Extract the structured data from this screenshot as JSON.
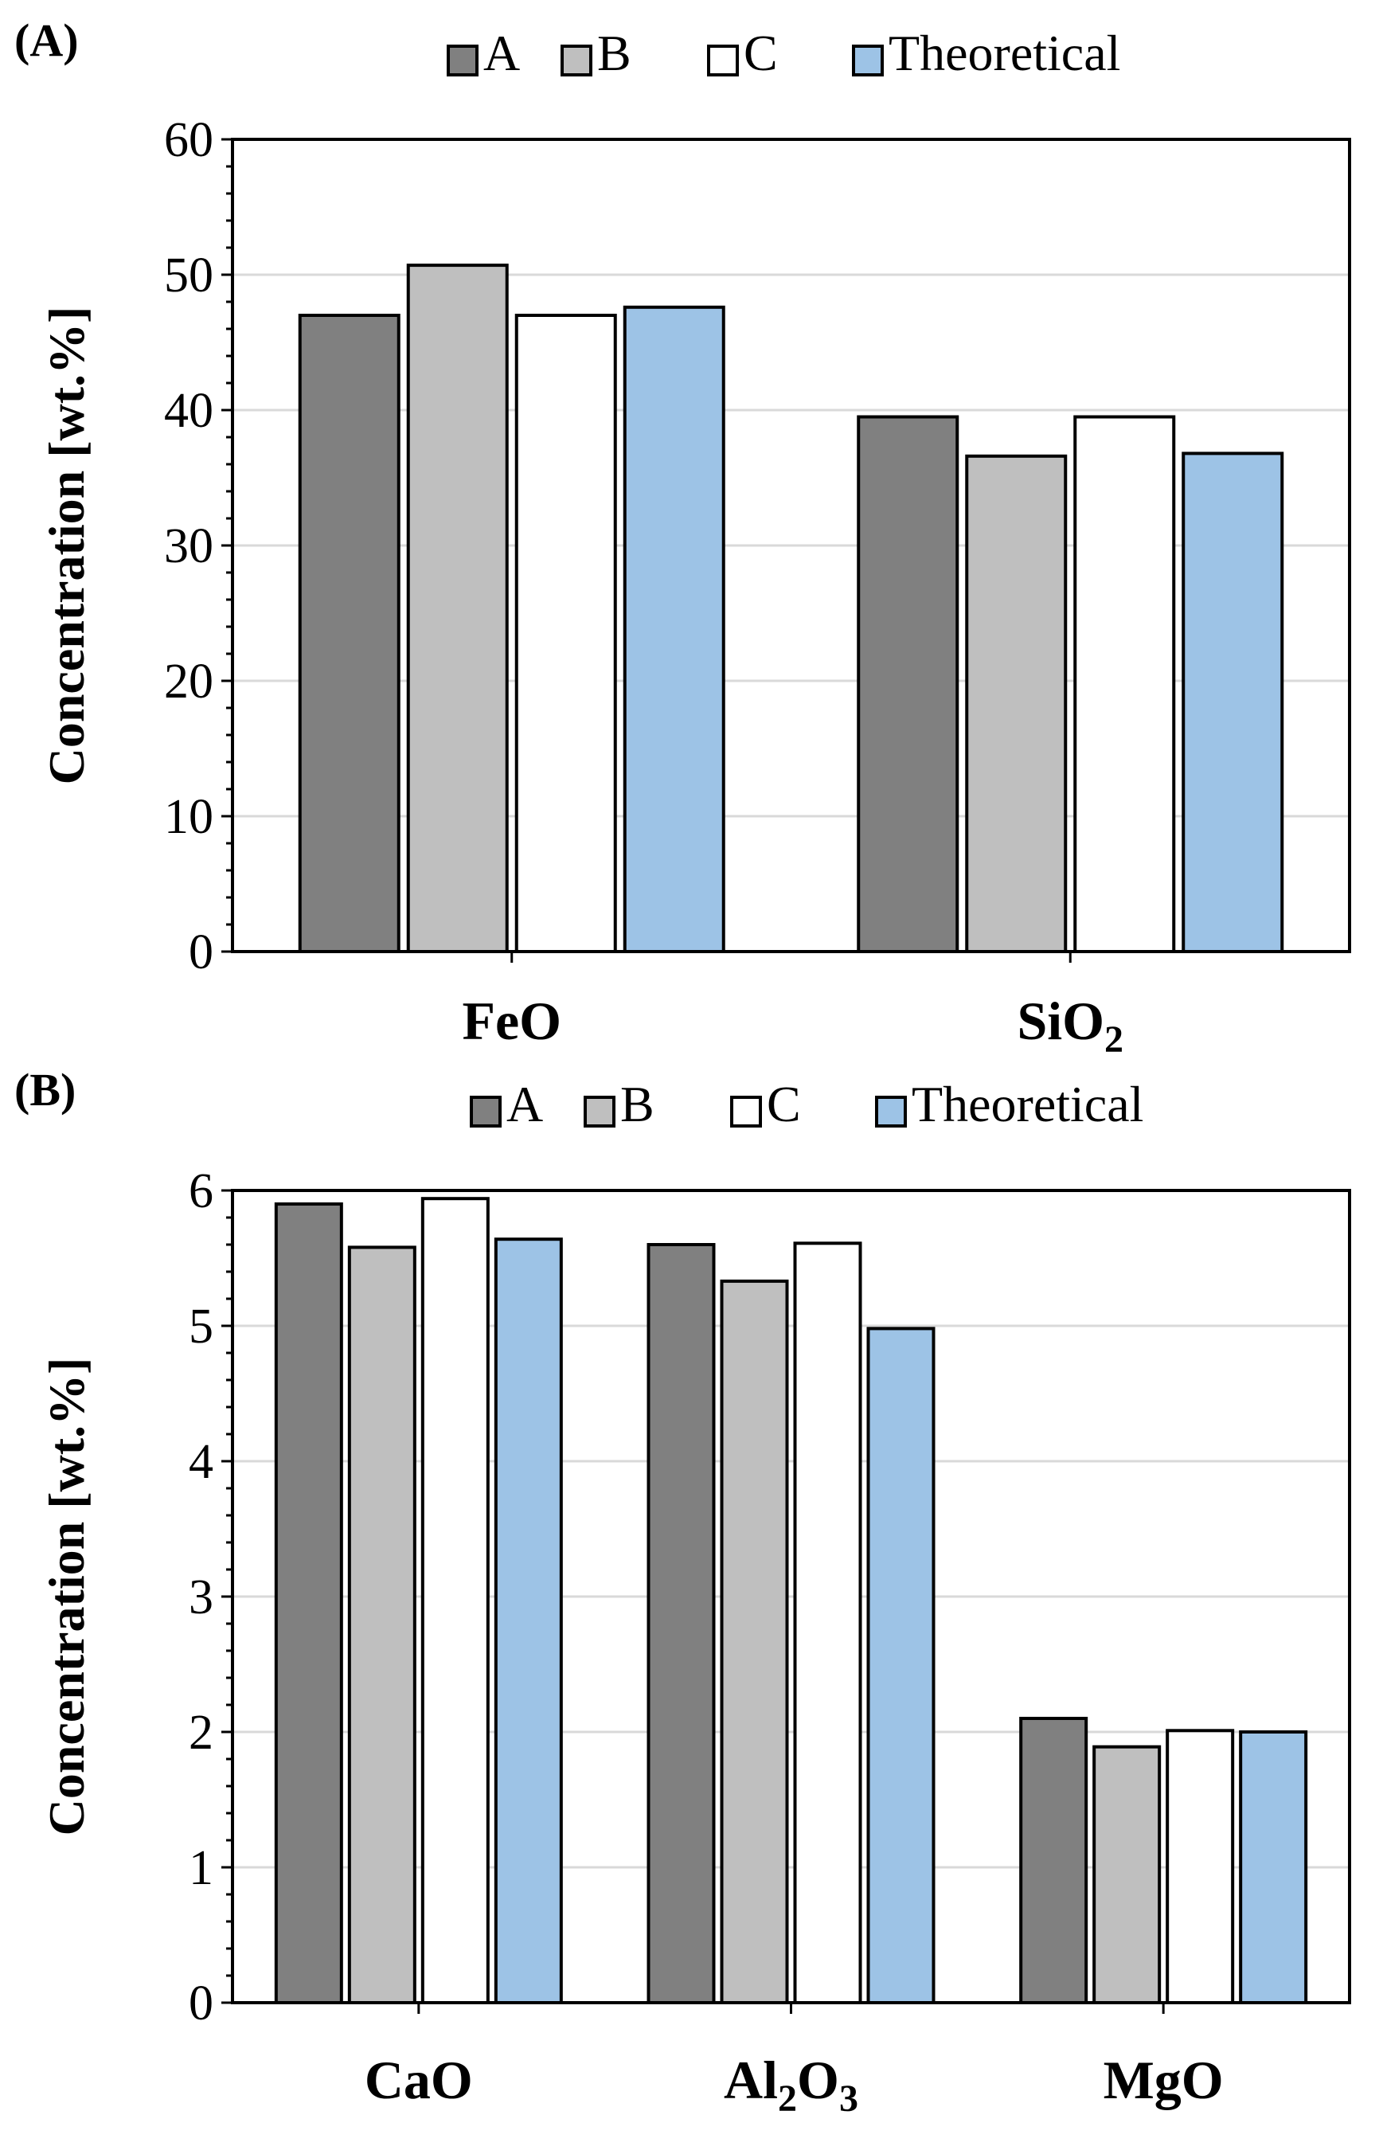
{
  "chart_data": [
    {
      "type": "bar",
      "panel_label": "(A)",
      "categories": [
        {
          "base": "FeO",
          "sub": ""
        },
        {
          "base": "SiO",
          "sub": "2"
        }
      ],
      "series": [
        {
          "name": "A",
          "color": "#808080",
          "values": [
            47.0,
            39.5
          ]
        },
        {
          "name": "B",
          "color": "#bfbfbf",
          "values": [
            50.7,
            36.6
          ]
        },
        {
          "name": "C",
          "color": "#ffffff",
          "values": [
            47.0,
            39.5
          ]
        },
        {
          "name": "Theoretical",
          "color": "#9dc3e6",
          "values": [
            47.6,
            36.8
          ]
        }
      ],
      "ylabel": "Concentration [wt.%]",
      "xlabel": "",
      "ylim": [
        0,
        60
      ],
      "yticks": [
        0,
        10,
        20,
        30,
        40,
        50,
        60
      ],
      "minor_ticks_per_major": 5,
      "grid": true,
      "legend": "top"
    },
    {
      "type": "bar",
      "panel_label": "(B)",
      "categories": [
        {
          "base": "CaO",
          "sub": ""
        },
        {
          "base": "Al",
          "sub": "2",
          "base2": "O",
          "sub2": "3"
        },
        {
          "base": "MgO",
          "sub": ""
        }
      ],
      "series": [
        {
          "name": "A",
          "color": "#808080",
          "values": [
            5.9,
            5.6,
            2.1
          ]
        },
        {
          "name": "B",
          "color": "#bfbfbf",
          "values": [
            5.58,
            5.33,
            1.89
          ]
        },
        {
          "name": "C",
          "color": "#ffffff",
          "values": [
            5.94,
            5.61,
            2.01
          ]
        },
        {
          "name": "Theoretical",
          "color": "#9dc3e6",
          "values": [
            5.64,
            4.98,
            2.0
          ]
        }
      ],
      "ylabel": "Concentration [wt.%]",
      "xlabel": "",
      "ylim": [
        0,
        6
      ],
      "yticks": [
        0,
        1,
        2,
        3,
        4,
        5,
        6
      ],
      "minor_ticks_per_major": 5,
      "grid": true,
      "legend": "top"
    }
  ]
}
